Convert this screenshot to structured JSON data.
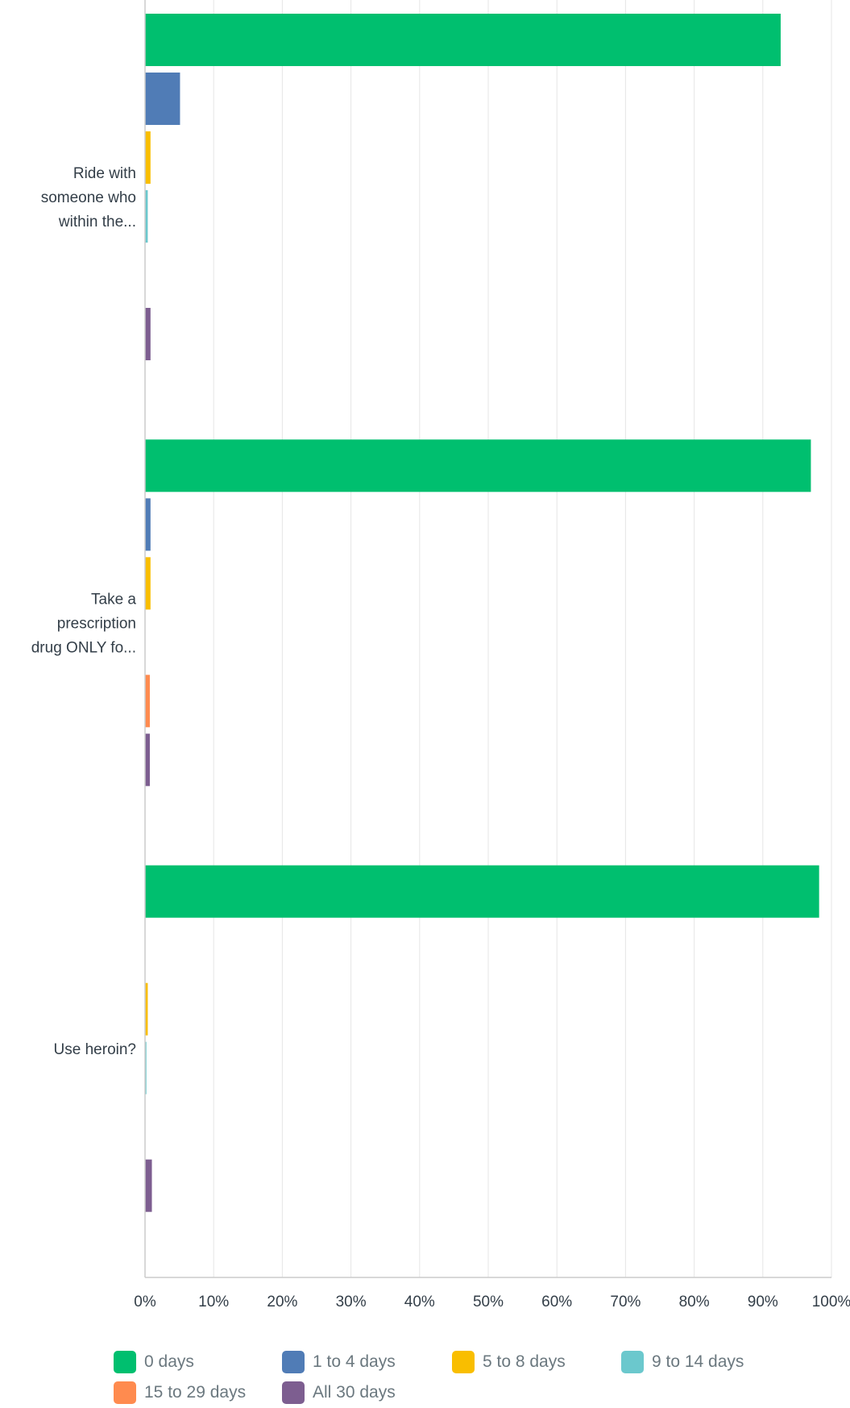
{
  "chart_data": {
    "type": "bar",
    "orientation": "horizontal",
    "title": "",
    "xlabel": "",
    "ylabel": "",
    "xlim": [
      0,
      100
    ],
    "x_ticks": [
      "0%",
      "10%",
      "20%",
      "30%",
      "40%",
      "50%",
      "60%",
      "70%",
      "80%",
      "90%",
      "100%"
    ],
    "grid": true,
    "legend_position": "bottom",
    "categories": [
      [
        "Ride with",
        "someone who",
        "within the..."
      ],
      [
        "Take a",
        "prescription",
        "drug ONLY fo..."
      ],
      [
        "Use heroin?"
      ]
    ],
    "series": [
      {
        "name": "0 days",
        "color": "#00bf6f",
        "values": [
          92.6,
          97.0,
          98.2
        ]
      },
      {
        "name": "1 to 4 days",
        "color": "#507cb6",
        "values": [
          5.1,
          0.8,
          0.0
        ]
      },
      {
        "name": "5 to 8 days",
        "color": "#f9be00",
        "values": [
          0.8,
          0.8,
          0.4
        ]
      },
      {
        "name": "9 to 14 days",
        "color": "#6bc8cd",
        "values": [
          0.4,
          0.0,
          0.2
        ]
      },
      {
        "name": "15 to 29 days",
        "color": "#ff8b4f",
        "values": [
          0.0,
          0.7,
          0.0
        ]
      },
      {
        "name": "All 30 days",
        "color": "#7d5e90",
        "values": [
          0.8,
          0.7,
          1.0
        ]
      }
    ]
  }
}
